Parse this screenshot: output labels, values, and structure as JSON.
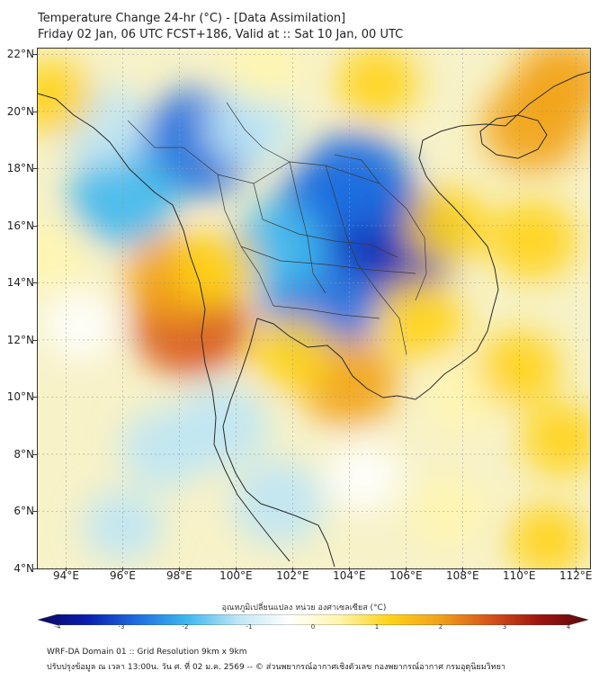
{
  "header": {
    "title": "Temperature Change 24-hr (°C) - [Data Assimilation]",
    "subtitle": "Friday 02 Jan, 06 UTC FCST+186, Valid at :: Sat 10 Jan, 00 UTC"
  },
  "map": {
    "lat_labels": [
      "22°N",
      "20°N",
      "18°N",
      "16°N",
      "14°N",
      "12°N",
      "10°N",
      "8°N",
      "6°N",
      "4°N"
    ],
    "lon_labels": [
      "94°E",
      "96°E",
      "98°E",
      "100°E",
      "102°E",
      "104°E",
      "106°E",
      "108°E",
      "110°E",
      "112°E"
    ],
    "extent": {
      "lon_min": 93,
      "lon_max": 112.5,
      "lat_min": 4,
      "lat_max": 22.2
    },
    "field": [
      {
        "lon": 103.5,
        "lat": 16.5,
        "value": -2.6
      },
      {
        "lon": 105.5,
        "lat": 15.4,
        "value": -3.0
      },
      {
        "lon": 104.2,
        "lat": 17.5,
        "value": -2.2
      },
      {
        "lon": 103.0,
        "lat": 13.2,
        "value": -2.4
      },
      {
        "lon": 101.5,
        "lat": 15.2,
        "value": -1.6
      },
      {
        "lon": 98.7,
        "lat": 18.9,
        "value": -2.5
      },
      {
        "lon": 96.0,
        "lat": 17.0,
        "value": -2.0
      },
      {
        "lon": 95.3,
        "lat": 19.5,
        "value": -1.2
      },
      {
        "lon": 100.5,
        "lat": 19.5,
        "value": -1.3
      },
      {
        "lon": 99.5,
        "lat": 9.0,
        "value": -1.4
      },
      {
        "lon": 97.5,
        "lat": 8.2,
        "value": -1.2
      },
      {
        "lon": 101.5,
        "lat": 6.3,
        "value": -1.4
      },
      {
        "lon": 104.5,
        "lat": 7.2,
        "value": -0.7
      },
      {
        "lon": 94.5,
        "lat": 12.5,
        "value": -0.6
      },
      {
        "lon": 96.0,
        "lat": 5.5,
        "value": -0.8
      },
      {
        "lon": 98.4,
        "lat": 12.6,
        "value": 2.5
      },
      {
        "lon": 97.8,
        "lat": 14.2,
        "value": 1.6
      },
      {
        "lon": 104.0,
        "lat": 10.5,
        "value": 1.6
      },
      {
        "lon": 102.0,
        "lat": 11.5,
        "value": 1.0
      },
      {
        "lon": 106.5,
        "lat": 12.7,
        "value": 1.2
      },
      {
        "lon": 107.5,
        "lat": 16.0,
        "value": 1.0
      },
      {
        "lon": 110.5,
        "lat": 19.5,
        "value": 1.8
      },
      {
        "lon": 111.5,
        "lat": 21.0,
        "value": 1.6
      },
      {
        "lon": 110.5,
        "lat": 15.5,
        "value": 1.2
      },
      {
        "lon": 105.0,
        "lat": 21.0,
        "value": 0.9
      },
      {
        "lon": 101.0,
        "lat": 21.5,
        "value": 0.7
      },
      {
        "lon": 108.0,
        "lat": 10.0,
        "value": 0.6
      },
      {
        "lon": 110.0,
        "lat": 11.0,
        "value": 1.0
      },
      {
        "lon": 111.5,
        "lat": 8.5,
        "value": 0.9
      },
      {
        "lon": 107.5,
        "lat": 6.0,
        "value": 0.7
      },
      {
        "lon": 111.0,
        "lat": 5.0,
        "value": 0.8
      },
      {
        "lon": 93.5,
        "lat": 20.5,
        "value": 1.0
      },
      {
        "lon": 93.5,
        "lat": 15.0,
        "value": 0.6
      },
      {
        "lon": 99.3,
        "lat": 14.5,
        "value": 1.0
      }
    ],
    "land_color": "#333333"
  },
  "colorbar": {
    "label": "อุณหภูมิเปลี่ยนแปลง หน่วย องศาเซลเซียส (°C)",
    "ticks": [
      "-4",
      "-3",
      "-2",
      "-1",
      "0",
      "1",
      "2",
      "3",
      "4"
    ],
    "min": -4,
    "max": 4,
    "colors": [
      "#08085e",
      "#0a1fb0",
      "#1f6fe0",
      "#3fb8f0",
      "#bfe6f5",
      "#ffffff",
      "#fff6b0",
      "#ffd31a",
      "#f2a31a",
      "#d8561a",
      "#a01410",
      "#5a0a0a"
    ]
  },
  "footer": {
    "line1": "WRF-DA Domain 01 :: Grid Resolution 9km x 9km",
    "line2": "ปรับปรุงข้อมูล ณ เวลา 13:00น. วัน ศ. ที่ 02 ม.ค. 2569 -- © ส่วนพยากรณ์อากาศเชิงตัวเลข กองพยากรณ์อากาศ กรมอุตุนิยมวิทยา"
  }
}
